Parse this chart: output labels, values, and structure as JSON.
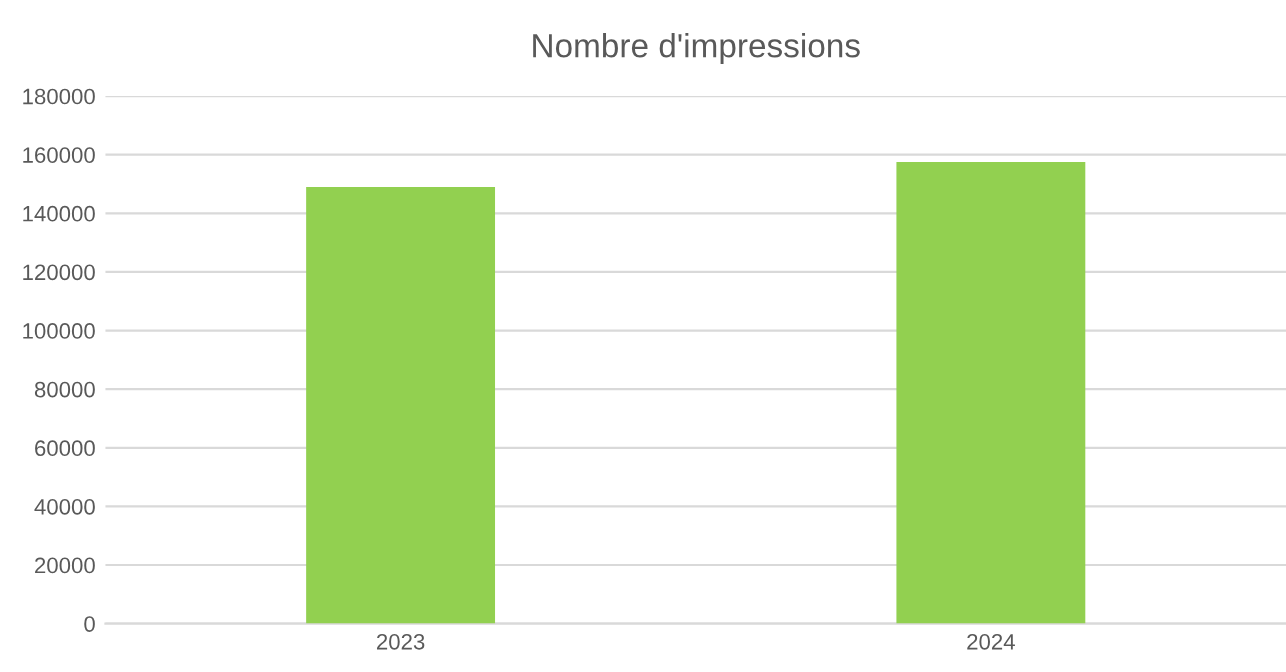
{
  "chart_data": {
    "type": "bar",
    "title": "Nombre d'impressions",
    "categories": [
      "2023",
      "2024"
    ],
    "values": [
      149000,
      157500
    ],
    "color": "#92d050",
    "ylim": [
      0,
      180000
    ],
    "yticks": [
      0,
      20000,
      40000,
      60000,
      80000,
      100000,
      120000,
      140000,
      160000,
      180000
    ],
    "grid": "y"
  }
}
